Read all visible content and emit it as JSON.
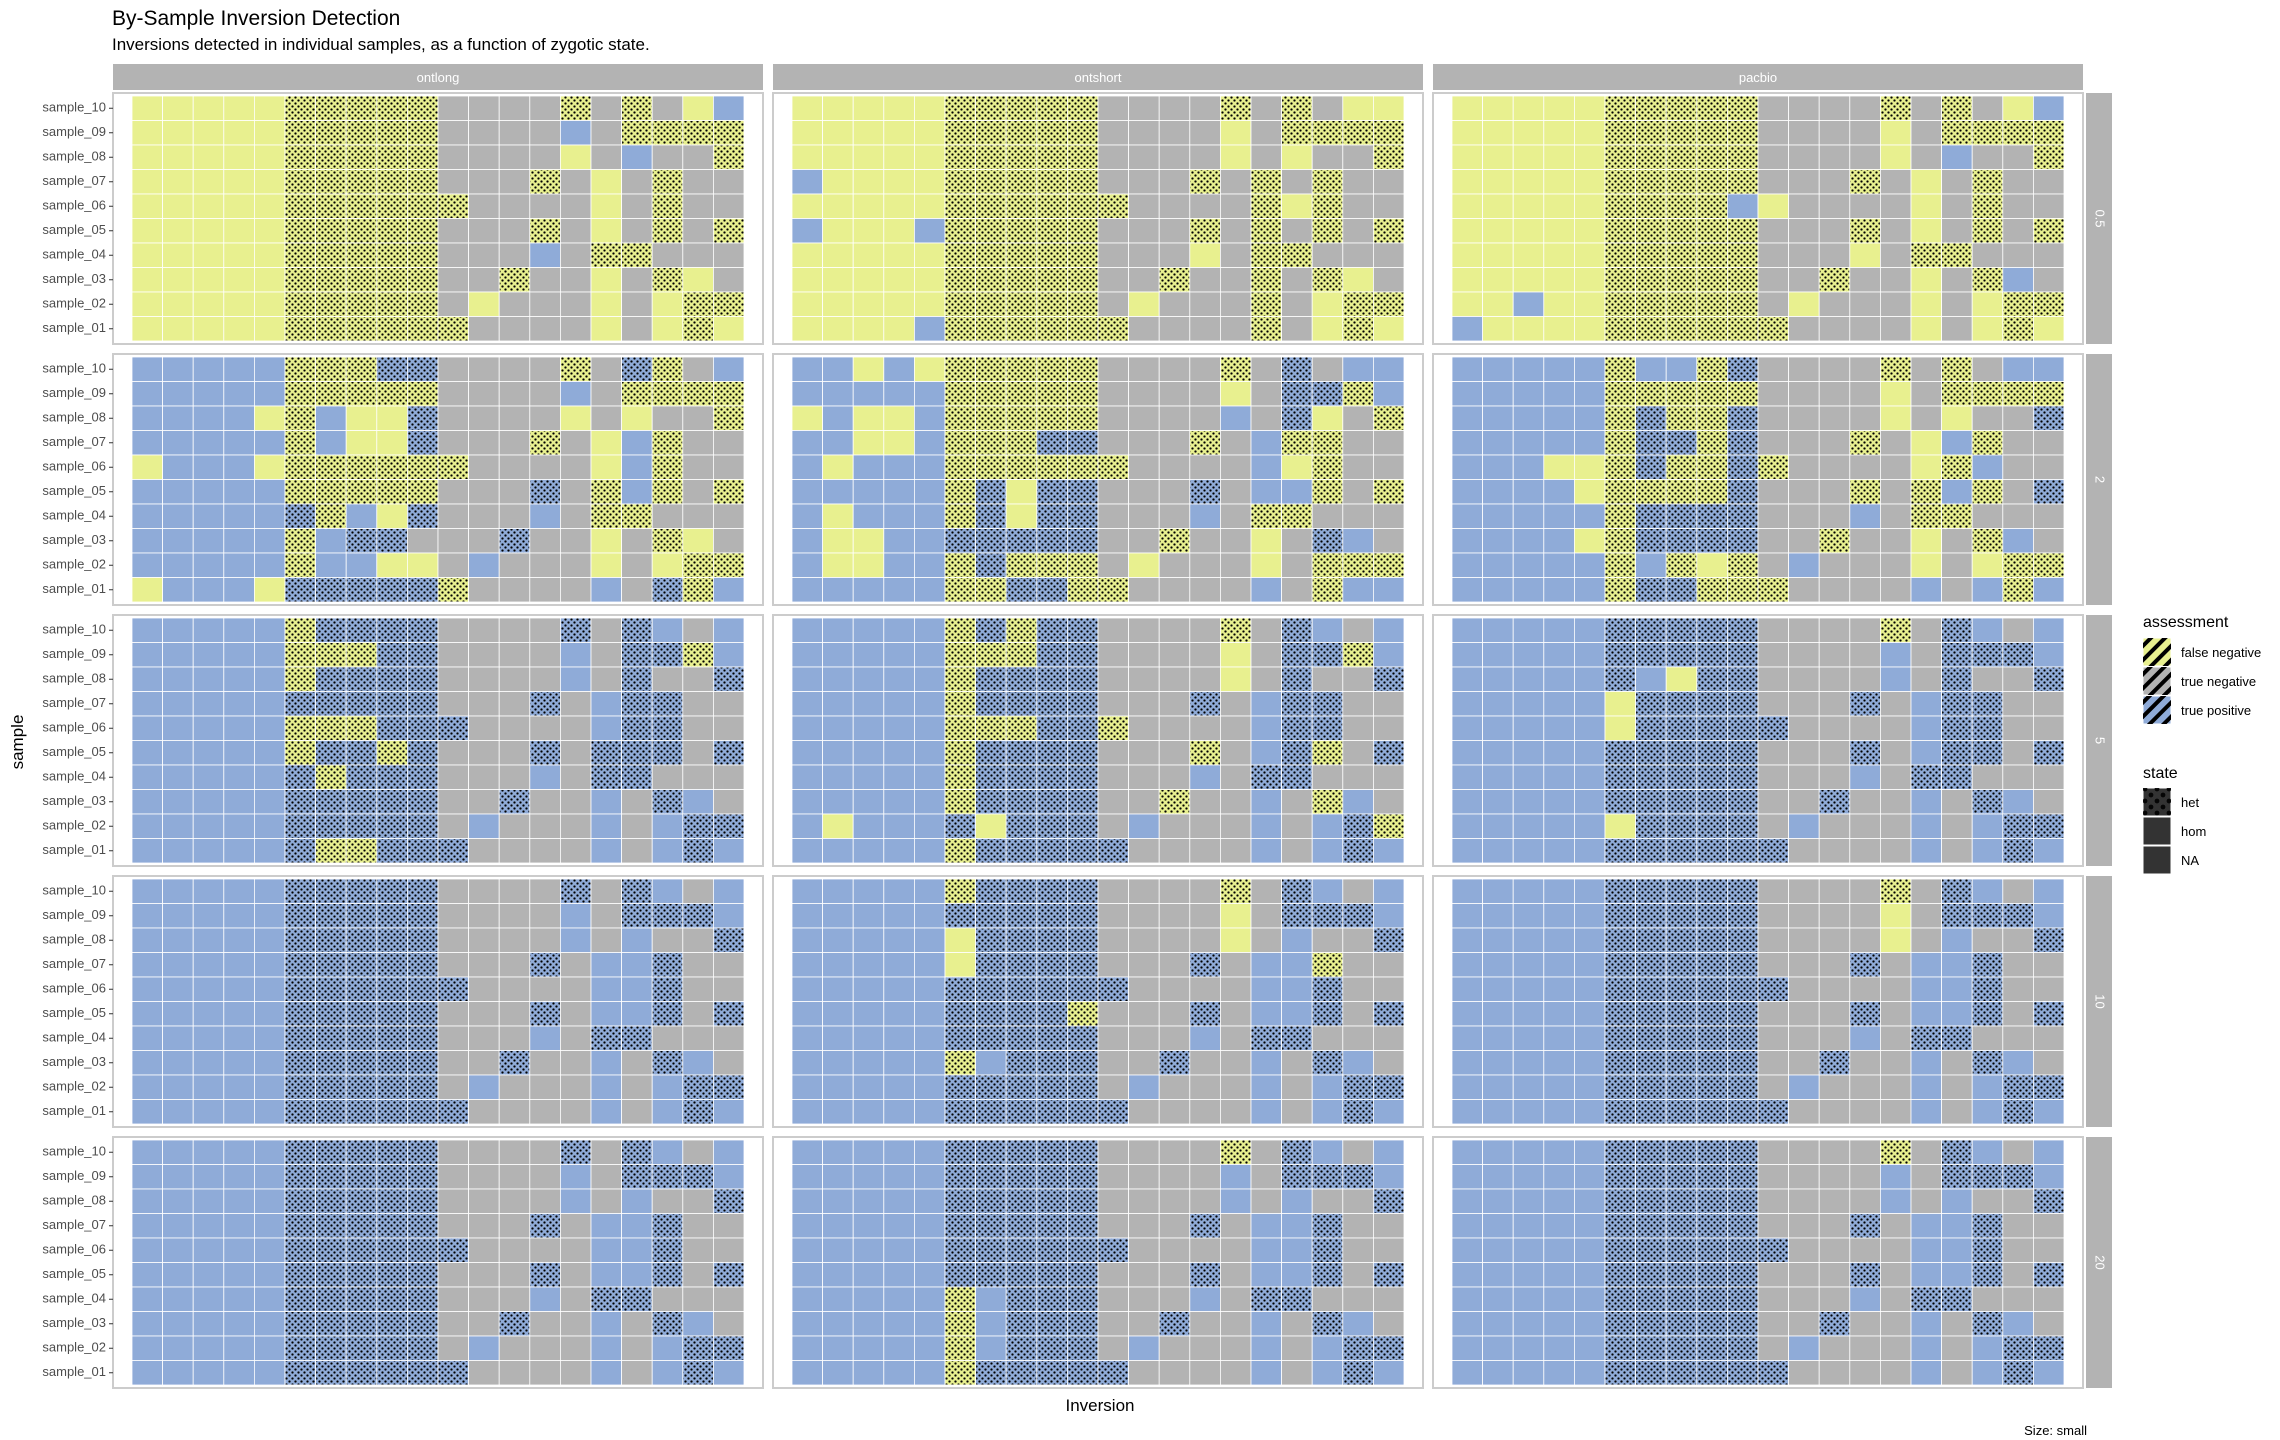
{
  "chart_data": {
    "type": "heatmap",
    "title": "By-Sample Inversion Detection",
    "subtitle": "Inversions detected in individual samples, as a function of zygotic state.",
    "xlabel": "Inversion",
    "ylabel": "sample",
    "caption": "Size: small",
    "columns": [
      "ontlong",
      "ontshort",
      "pacbio"
    ],
    "rows": [
      "0.5",
      "2",
      "5",
      "10",
      "20"
    ],
    "samples": [
      "sample_10",
      "sample_09",
      "sample_08",
      "sample_07",
      "sample_06",
      "sample_05",
      "sample_04",
      "sample_03",
      "sample_02",
      "sample_01"
    ],
    "n_inversions": 20,
    "cell_codes": "Each grid string lists sample_10 (top) to sample_01 (bottom); each character is one inversion, left to right. Y = false negative, G = true negative, B = true positive; lowercase = het state, uppercase = hom state.",
    "legend": {
      "assessment_title": "assessment",
      "assessment": [
        {
          "label": "false negative",
          "color": "#e8f08f"
        },
        {
          "label": "true negative",
          "color": "#b3b3b3"
        },
        {
          "label": "true positive",
          "color": "#8fabd8"
        }
      ],
      "state_title": "state",
      "state": [
        "het",
        "hom",
        "NA"
      ]
    },
    "grids": {
      "ontlong": [
        [
          "YYYYYyyyyyGGGGyGyGYB",
          "YYYYYyyyyyGGGGBGyyyy",
          "YYYYYyyyyyGGGGYGBGGy",
          "YYYYYyyyyyGGGyGYGyGG",
          "YYYYYyyyyyyGGGGYGyGG",
          "YYYYYyyyyyGGGyGYGyGy",
          "YYYYYyyyyyGGGBGyyGGG",
          "YYYYYyyyyyGGyGGYGyYG",
          "YYYYYyyyyyGYGGGYGYyy",
          "YYYYYyyyyyyGGGGYGYyY"
        ],
        [
          "BBBBByyybbGGGGyGbyGB",
          "BBBBByyyyyGGGGBGyyyy",
          "BBBBYyBYYbGGGGYGYGGy",
          "BBBBByBYYbGGGyGYByGG",
          "YBBBYyyyyyyGGGGYByGG",
          "BBBBByyyyyGGGbGyByGy",
          "BBBBBbyBYbGGGBGyyGGG",
          "BBBBByBbbGGGbGGYGyYG",
          "BBBBByBBYYGBGGGYGYyy",
          "YBBBYbbbbbyGGGGBGbyB"
        ],
        [
          "BBBBBybbbbGGGGbGbBGB",
          "BBBBByyybbGGGGBGbbyB",
          "BBBBBybbbbGGGGBGbGGb",
          "BBBBBbbbbbGGGbGBbbGG",
          "BBBBByyybbbGGGGBbbGG",
          "BBBBBybbybGGGbGbbbGb",
          "BBBBBbybbbGGGBGbbGGG",
          "BBBBBbbbbbGGbGGBGbBG",
          "BBBBBbbbbbGBGGGBGBbb",
          "BBBBBbyybbbGGGGBGBbB"
        ],
        [
          "BBBBBbbbbbGGGGbGbBGB",
          "BBBBBbbbbbGGGGBGbbbB",
          "BBBBBbbbbbGGGGBGBGGb",
          "BBBBBbbbbbGGGbGBBbGG",
          "BBBBBbbbbbbGGGGBBbGG",
          "BBBBBbbbbbGGGbGBBbGb",
          "BBBBBbbbbbGGGBGbbGGG",
          "BBBBBbbbbbGGbGGBGbBG",
          "BBBBBbbbbbGBGGGBGBbb",
          "BBBBBbbbbbbGGGGBGBbB"
        ],
        [
          "BBBBBbbbbbGGGGbGbBGB",
          "BBBBBbbbbbGGGGBGbbbB",
          "BBBBBbbbbbGGGGBGBGGb",
          "BBBBBbbbbbGGGbGBBbGG",
          "BBBBBbbbbbbGGGGBBbGG",
          "BBBBBbbbbbGGGbGBBbGb",
          "BBBBBbbbbbGGGBGbbGGG",
          "BBBBBbbbbbGGbGGBGbBG",
          "BBBBBbbbbbGBGGGBGBbb",
          "BBBBBbbbbbbGGGGBGBbB"
        ]
      ],
      "ontshort": [
        [
          "YYYYYyyyyyGGGGyGyGYY",
          "YYYYYyyyyyGGGGYGyyyy",
          "YYYYYyyyyyGGGGYGYGGy",
          "BYYYYyyyyyGGGyGyGyGG",
          "YYYYYyyyyyyGGGGyYyGG",
          "BYYYByyyyyGGGyGyGyGy",
          "YYYYYyyyyyGGGYGyyGGG",
          "YYYYYyyyyyGGyGGyGyYG",
          "YYYYYyyyyyGYGGGyGYyy",
          "YYYYByyyyyyGGGGyGYyY"
        ],
        [
          "BBYBYyyyyyGGGGyGbGBB",
          "BBBBByyyyyGGGGYGbbyB",
          "YBYYByyyyyGGGGBGbYGy",
          "BBYYByyybbGGGyGByyGG",
          "BYBBByyyyyyGGGGBYyGG",
          "BBBBBybYbbGGGbGBByGy",
          "BYBBBybYbbGGGBGyyGGG",
          "BYYBBbbbbbGGyGGYGbBG",
          "BYYBBybyyyGYGGGYGyyy",
          "BBBBByybbyyGGGGBGyBB"
        ],
        [
          "BBBBBybybbGGGGyGbBGB",
          "BBBBByyybbGGGGYGbbyB",
          "BBBBBybbbbGGGGYGbGGb",
          "BBBBBybbbbGGGbGBbbGG",
          "BBBBByyybbyGGGGBbbGG",
          "BBBBBybbbbGGGyGBbyGb",
          "BBBBBybbbbGGGBGbbGGG",
          "BBBBBybbbbGGyGGBGyBG",
          "BYBBBbYbbbGBGGGBGBby",
          "BBBBBybbbbbGGGGBGBbB"
        ],
        [
          "BBBBBybbbbGGGGyGbBGB",
          "BBBBBbbbbbGGGGYGbbbB",
          "BBBBBYbbbbGGGGYGBGGb",
          "BBBBBYbbbbGGGbGBByGG",
          "BBBBBbbbbbbGGGGBBbGG",
          "BBBBBbbbbyGGGbGBBbGb",
          "BBBBBbbbbbGGGBGbbGGG",
          "BBBBByBbbbGGbGGBGbBG",
          "BBBBBbbbbbGBGGGBGBbb",
          "BBBBBbbbbbbGGGGBGBbB"
        ],
        [
          "BBBBBbbbbbGGGGyGbBGB",
          "BBBBBbbbbbGGGGBGbbbB",
          "BBBBBbbbbbGGGGBGBGGb",
          "BBBBBbbbbbGGGbGBBbGG",
          "BBBBBbbbbbbGGGGBBbGG",
          "BBBBBbbbbbGGGbGBBbGb",
          "BBBBByBbbbGGGBGbbGGG",
          "BBBBByBbbbGGbGGBGbBG",
          "BBBBByBbbbGBGGGBGBbb",
          "BBBBBybbbbbGGGGBGBbB"
        ]
      ],
      "pacbio": [
        [
          "YYYYYyyyyyGGGGyGyGYB",
          "YYYYYyyyyyGGGGYGyyyy",
          "YYYYYyyyyyGGGGYGBGGy",
          "YYYYYyyyyyGGGyGYGyGG",
          "YYYYYyyyyBYGGGGYGyGG",
          "YYYYYyyyyyGGGyGYGyGy",
          "YYYYYyyyyyGGGYGyyGGG",
          "YYYYYyyyyyGGyGGYGyBG",
          "YYBYYyyyyyGYGGGYGYyy",
          "BYYYYyyyyyyGGGGYGYyY"
        ],
        [
          "BBBBByBBybGGGGyGyGBB",
          "BBBBByyyyyGGGGYGyyyy",
          "BBBBBybyybGGGGYGYGGb",
          "BBBBBybbybGGGyGYByGG",
          "BBBYYybyybyGGGGYyBGG",
          "BBBBYyyyybGGGyGyByGb",
          "BBBBBybbbbGGGBGyyGGG",
          "BBBBYybbbbGGyGGYGyBG",
          "BBBBByByYyGBGGGYGYyy",
          "BBBBBybbyyyGGGGBGByB"
        ],
        [
          "BBBBBbbbbbGGGGyGbBGB",
          "BBBBBbbbbbGGGGBGbbbB",
          "BBBBBbBYbbGGGGBGbGGb",
          "BBBBBYbbbbGGGbGBbbGG",
          "BBBBBYbbbbbGGGGBbbGG",
          "BBBBBbbbbbGGGbGBbbGb",
          "BBBBBbbbbbGGGBGbbGGG",
          "BBBBBbbbbbGGbGGBGbBG",
          "BBBBBYbbbbGBGGGBGBbb",
          "BBBBBbbbbbbGGGGBGBbB"
        ],
        [
          "BBBBBbbbbbGGGGyGbBGB",
          "BBBBBbbbbbGGGGYGbbbB",
          "BBBBBbbbbbGGGGYGBGGb",
          "BBBBBbbbbbGGGbGBBbGG",
          "BBBBBbbbbbbGGGGBBbGG",
          "BBBBBbbbbbGGGbGBBbGb",
          "BBBBBbbbbbGGGBGbbGGG",
          "BBBBBbbbbbGGbGGBGbBG",
          "BBBBBbbbbbGBGGGBGBbb",
          "BBBBBbbbbbbGGGGBGBbB"
        ],
        [
          "BBBBBbbbbbGGGGyGbBGB",
          "BBBBBbbbbbGGGGBGbbbB",
          "BBBBBbbbbbGGGGBGBGGb",
          "BBBBBbbbbbGGGbGBBbGG",
          "BBBBBbbbbbbGGGGBBbGG",
          "BBBBBbbbbbGGGbGBBbGb",
          "BBBBBbbbbbGGGBGbbGGG",
          "BBBBBbbbbbGGbGGBGbBG",
          "BBBBBbbbbbGBGGGBGBbb",
          "BBBBBbbbbbbGGGGBGBbB"
        ]
      ]
    }
  }
}
